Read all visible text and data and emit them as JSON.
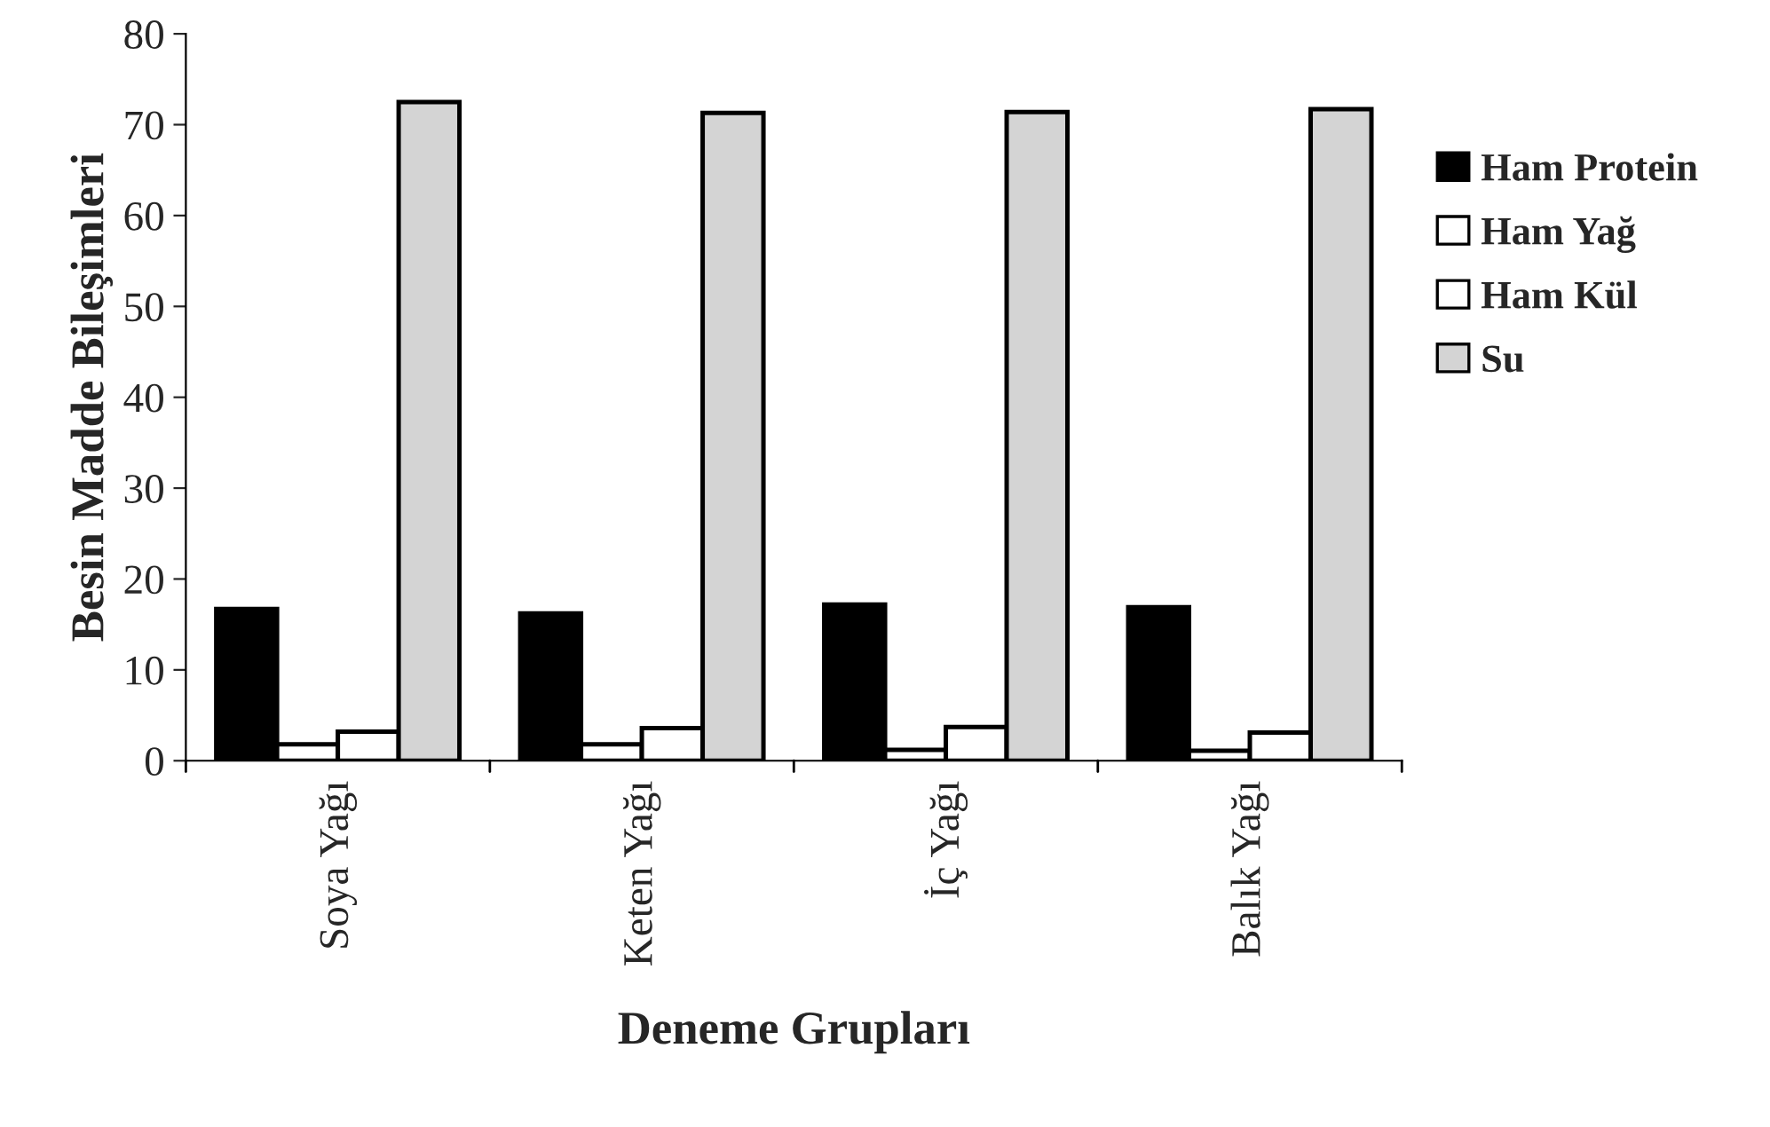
{
  "chart_data": {
    "type": "bar",
    "xlabel": "Deneme Grupları",
    "ylabel": "Besin Madde Bileşimleri",
    "categories": [
      "Soya Yağı",
      "Keten Yağı",
      "İç Yağı",
      "Balık Yağı"
    ],
    "series": [
      {
        "name": "Ham Protein",
        "color": "#000000",
        "values": [
          16.7,
          16.2,
          17.2,
          16.9
        ]
      },
      {
        "name": "Ham Yağ",
        "color": "#ffffff",
        "values": [
          1.8,
          1.8,
          1.2,
          1.1
        ]
      },
      {
        "name": "Ham Kül",
        "color": "#ffffff",
        "values": [
          3.2,
          3.6,
          3.7,
          3.1
        ]
      },
      {
        "name": "Su",
        "color": "#d4d4d4",
        "values": [
          72.5,
          71.3,
          71.4,
          71.7
        ]
      }
    ],
    "ylim": [
      0,
      80
    ],
    "yticks": [
      0,
      10,
      20,
      30,
      40,
      50,
      60,
      70,
      80
    ],
    "grid": false,
    "legend": "right"
  }
}
